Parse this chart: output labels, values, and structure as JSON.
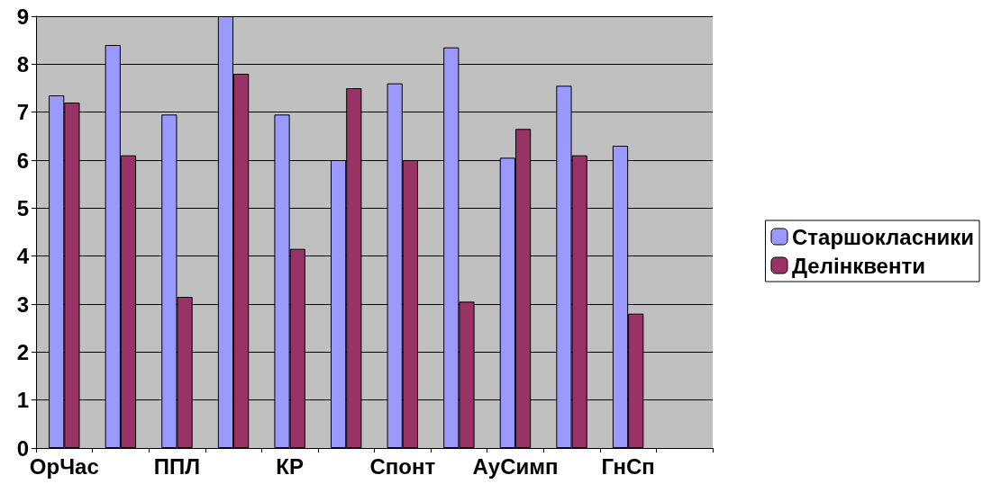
{
  "chart_data": {
    "type": "bar",
    "categories": [
      "ОрЧас",
      null,
      "ППЛ",
      null,
      "КР",
      null,
      "Спонт",
      null,
      "АуСимп",
      null,
      "ГнСп",
      null
    ],
    "series": [
      {
        "name": "Старшокласники",
        "color": "#9999ff",
        "values": [
          7.35,
          8.4,
          6.95,
          9.0,
          6.95,
          6.0,
          7.6,
          8.35,
          6.05,
          7.55,
          6.3,
          null
        ]
      },
      {
        "name": "Делінквенти",
        "color": "#993366",
        "values": [
          7.2,
          6.1,
          3.15,
          7.8,
          4.15,
          7.5,
          6.0,
          3.05,
          6.65,
          6.1,
          2.8,
          null
        ]
      }
    ],
    "ylim": [
      0,
      9
    ],
    "yticks": [
      0,
      1,
      2,
      3,
      4,
      5,
      6,
      7,
      8,
      9
    ],
    "grid": "y",
    "legend": "right"
  }
}
